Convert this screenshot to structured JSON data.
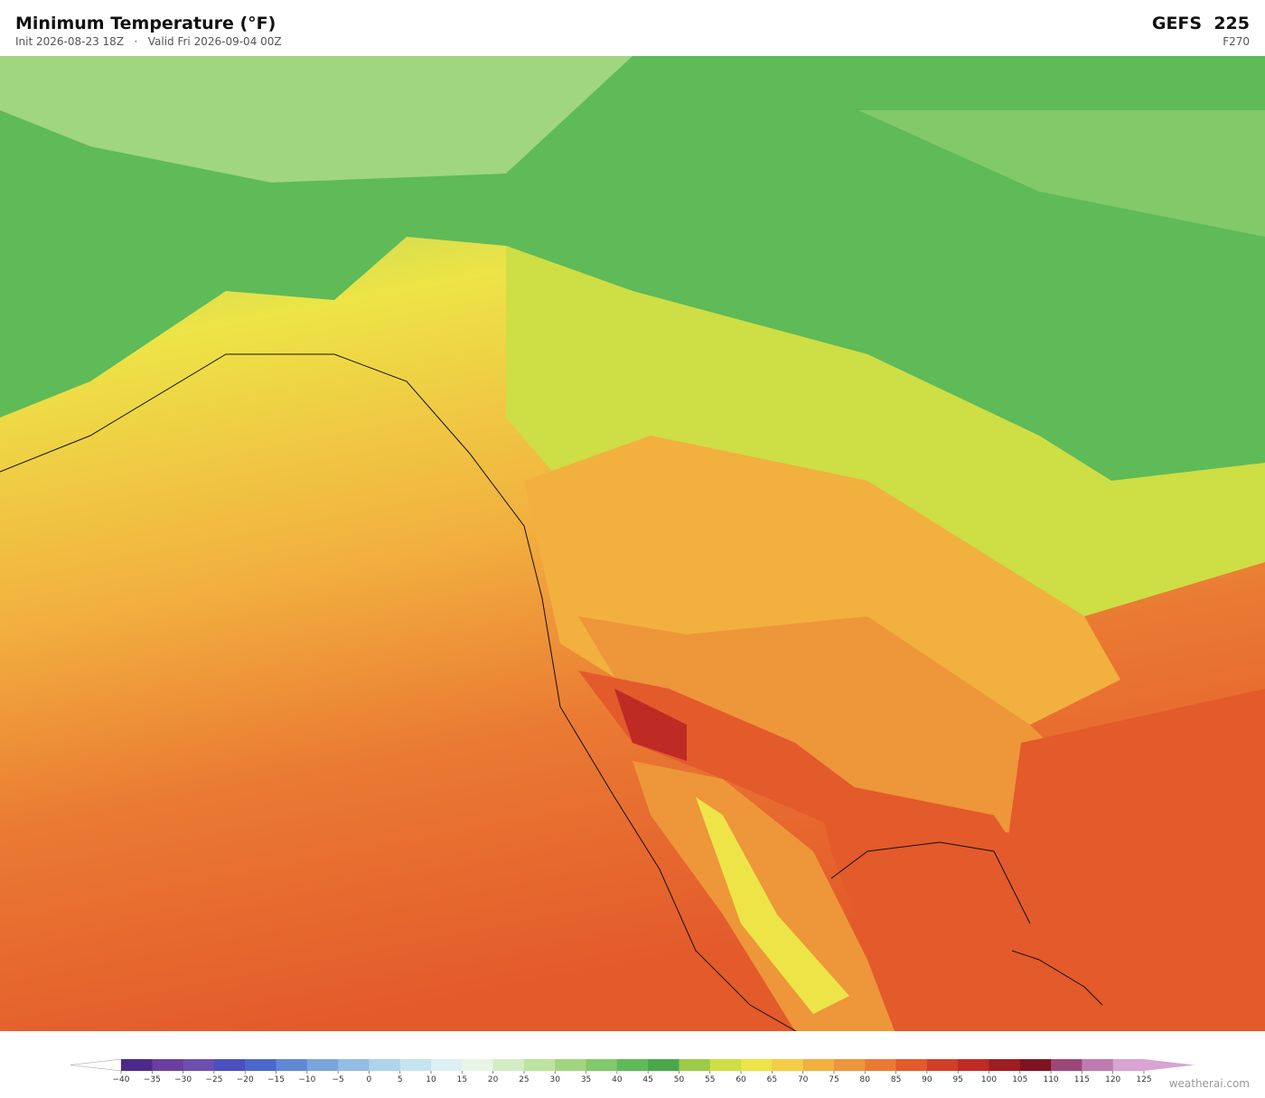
{
  "header": {
    "title": "Minimum Temperature  (°F)",
    "subtitle": "Init 2026-08-23 18Z   ·   Valid Fri 2026-09-04 00Z",
    "model": "GEFS  225",
    "forecast_hour": "F270"
  },
  "colorbar": {
    "ticks": [
      {
        "value": -40,
        "label": "−40"
      },
      {
        "value": -35,
        "label": "−35"
      },
      {
        "value": -30,
        "label": "−30"
      },
      {
        "value": -25,
        "label": "−25"
      },
      {
        "value": -20,
        "label": "−20"
      },
      {
        "value": -15,
        "label": "−15"
      },
      {
        "value": -10,
        "label": "−10"
      },
      {
        "value": -5,
        "label": "−5"
      },
      0,
      5,
      10,
      15,
      20,
      25,
      30,
      35,
      40,
      45,
      50,
      55,
      60,
      65,
      70,
      75,
      80,
      85,
      90,
      95,
      100,
      105,
      110,
      115,
      120,
      125
    ],
    "colors": [
      "#4b2a8a",
      "#6a3fa0",
      "#6c4fb0",
      "#4a50c0",
      "#4c68cc",
      "#6188d4",
      "#7aa4dc",
      "#93bde4",
      "#aed4ec",
      "#c6e4f0",
      "#dcf0f2",
      "#e8f4e4",
      "#d4ecc4",
      "#bde3a0",
      "#a0d67f",
      "#82c96a",
      "#5fba58",
      "#4aa84a",
      "#9ccb4a",
      "#cede45",
      "#ede447",
      "#f5cc45",
      "#f2b03f",
      "#ee963a",
      "#ea7a33",
      "#e35a2b",
      "#d23f27",
      "#bd2b24",
      "#9e1e22",
      "#7f1420",
      "#9c4778",
      "#c07ab0",
      "#d9a3d2"
    ],
    "under_color": "#ffffff",
    "over_color": "#d9a3d2"
  },
  "watermark": "weatherai.com"
}
